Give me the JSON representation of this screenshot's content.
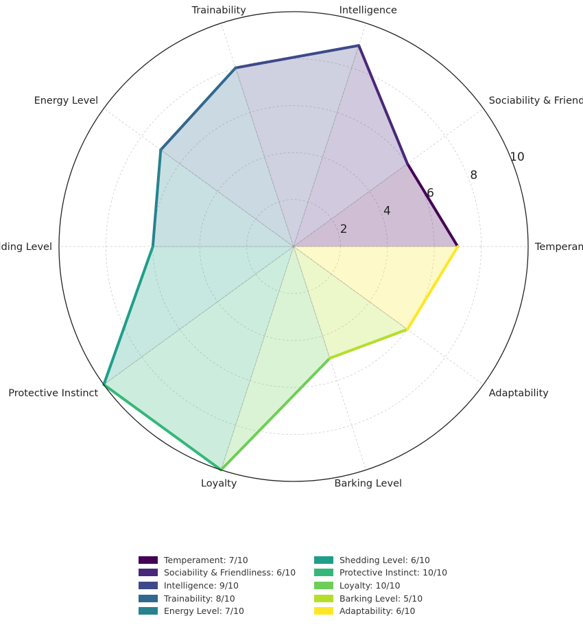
{
  "chart_data": {
    "type": "radar",
    "axes": [
      "Temperament",
      "Sociability & Friendliness",
      "Intelligence",
      "Trainability",
      "Energy Level",
      "Shedding Level",
      "Protective Instinct",
      "Loyalty",
      "Barking Level",
      "Adaptability"
    ],
    "values": [
      7,
      6,
      9,
      8,
      7,
      6,
      10,
      10,
      5,
      6
    ],
    "rlim": [
      0,
      10
    ],
    "rticks": [
      2,
      4,
      6,
      8,
      10
    ],
    "colors": [
      "#440154",
      "#482878",
      "#3e4989",
      "#31688e",
      "#26828e",
      "#1f9e89",
      "#35b779",
      "#6ece58",
      "#b5de2b",
      "#fde725"
    ],
    "legend": [
      "Temperament: 7/10",
      "Sociability & Friendliness: 6/10",
      "Intelligence: 9/10",
      "Trainability: 8/10",
      "Energy Level: 7/10",
      "Shedding Level: 6/10",
      "Protective Instinct: 10/10",
      "Loyalty: 10/10",
      "Barking Level: 5/10",
      "Adaptability: 6/10"
    ],
    "legend_placement": "bottom-center",
    "grid": true
  }
}
